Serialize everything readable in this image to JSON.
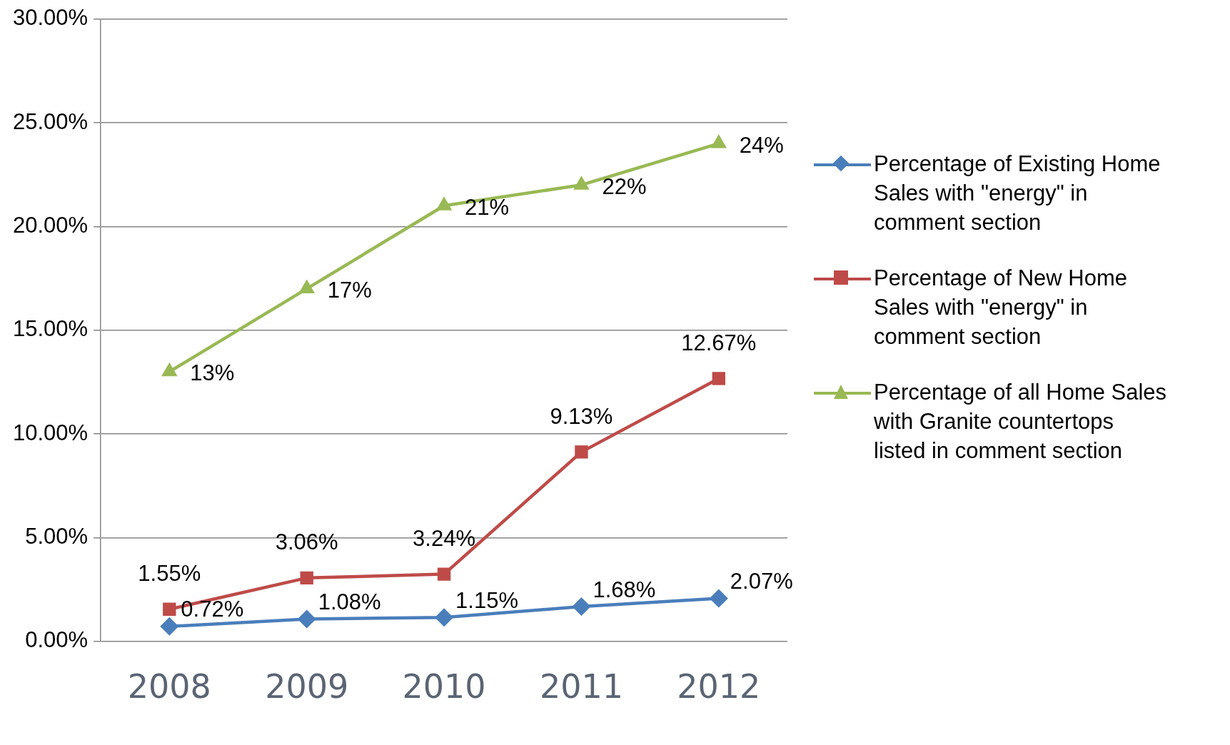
{
  "chart_data": {
    "type": "line",
    "categories": [
      "2008",
      "2009",
      "2010",
      "2011",
      "2012"
    ],
    "series": [
      {
        "name": "Percentage of Existing Home Sales with \"energy\" in comment section",
        "color": "#4a7ebb",
        "marker": "diamond",
        "values": [
          0.72,
          1.08,
          1.15,
          1.68,
          2.07
        ],
        "value_labels": [
          "0.72%",
          "1.08%",
          "1.15%",
          "1.68%",
          "2.07%"
        ]
      },
      {
        "name": "Percentage of New Home Sales with \"energy\" in comment section",
        "color": "#be4b48",
        "marker": "square",
        "values": [
          1.55,
          3.06,
          3.24,
          9.13,
          12.67
        ],
        "value_labels": [
          "1.55%",
          "3.06%",
          "3.24%",
          "9.13%",
          "12.67%"
        ]
      },
      {
        "name": "Percentage of all Home Sales with Granite countertops listed in comment section",
        "color": "#98b954",
        "marker": "triangle",
        "values": [
          13,
          17,
          21,
          22,
          24
        ],
        "value_labels": [
          "13%",
          "17%",
          "21%",
          "22%",
          "24%"
        ]
      }
    ],
    "ylim": [
      0,
      30
    ],
    "yticks": [
      {
        "value": 0,
        "label": "0.00%"
      },
      {
        "value": 5,
        "label": "5.00%"
      },
      {
        "value": 10,
        "label": "10.00%"
      },
      {
        "value": 15,
        "label": "15.00%"
      },
      {
        "value": 20,
        "label": "20.00%"
      },
      {
        "value": 25,
        "label": "25.00%"
      },
      {
        "value": 30,
        "label": "30.00%"
      }
    ],
    "grid": "y",
    "legend": "right",
    "line_style": "solid"
  }
}
